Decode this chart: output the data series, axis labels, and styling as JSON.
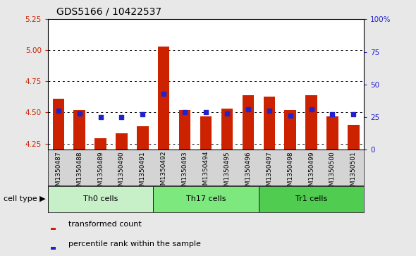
{
  "title": "GDS5166 / 10422537",
  "samples": [
    "GSM1350487",
    "GSM1350488",
    "GSM1350489",
    "GSM1350490",
    "GSM1350491",
    "GSM1350492",
    "GSM1350493",
    "GSM1350494",
    "GSM1350495",
    "GSM1350496",
    "GSM1350497",
    "GSM1350498",
    "GSM1350499",
    "GSM1350500",
    "GSM1350501"
  ],
  "red_values": [
    4.61,
    4.52,
    4.29,
    4.33,
    4.39,
    5.03,
    4.52,
    4.47,
    4.53,
    4.64,
    4.63,
    4.52,
    4.64,
    4.47,
    4.4
  ],
  "blue_values_pct": [
    30,
    28,
    25,
    25,
    27,
    43,
    29,
    29,
    28,
    31,
    30,
    26,
    31,
    27,
    27
  ],
  "y_min": 4.2,
  "y_max": 5.25,
  "y_ticks_left": [
    4.25,
    4.5,
    4.75,
    5.0,
    5.25
  ],
  "y_ticks_right": [
    0,
    25,
    50,
    75,
    100
  ],
  "groups": [
    {
      "label": "Th0 cells",
      "start": 0,
      "end": 5,
      "color": "#c8f0c8"
    },
    {
      "label": "Th17 cells",
      "start": 5,
      "end": 10,
      "color": "#7de87d"
    },
    {
      "label": "Tr1 cells",
      "start": 10,
      "end": 15,
      "color": "#50cc50"
    }
  ],
  "bar_color": "#cc2200",
  "dot_color": "#2222cc",
  "plot_bg": "#ffffff",
  "strip_bg": "#d4d4d4",
  "fig_bg": "#e8e8e8",
  "cell_type_label": "cell type",
  "legend_red": "transformed count",
  "legend_blue": "percentile rank within the sample",
  "title_fontsize": 10,
  "tick_fontsize": 7.5,
  "bar_width": 0.55
}
